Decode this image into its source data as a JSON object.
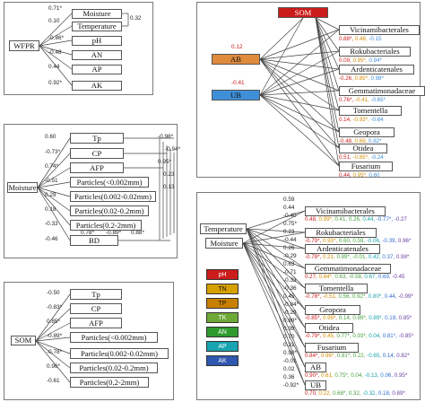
{
  "colors": {
    "som": "#cc1b1b",
    "ab": "#e08a3c",
    "ub": "#3f8fd8",
    "red": "#cc1b1b",
    "orange": "#d38b00",
    "green": "#4aa040",
    "blue": "#2f6fd0",
    "cyan": "#1aa0a8",
    "purple": "#6a3fa0"
  },
  "panel_a": {
    "root": "WFPR",
    "targets": [
      "Moisture",
      "Temperature",
      "pH",
      "AN",
      "AP",
      "AK"
    ],
    "coefs": [
      "0.71*",
      "0.10",
      "-0.86*",
      "-0.48",
      "0.44",
      "0.92*"
    ],
    "cross": "0.32"
  },
  "panel_b": {
    "root": "Moisture",
    "targets": [
      "Tp",
      "CP",
      "AFP",
      "Particles(<0.002mm)",
      "Particles(0.002-0.02mm)",
      "Particles(0.02-0.2mm)",
      "Particles(0.2-2mm)",
      "BD"
    ],
    "coefs": [
      "0.60",
      "-0.73*",
      "0.74*",
      "-0.51",
      "0.29",
      "0.18",
      "-0.33",
      "-0.46"
    ],
    "right": [
      "-0.98*",
      "-0.94*",
      "0.95*",
      "0.23",
      "0.13"
    ],
    "bottom": [
      "0.78*",
      "-0.89*",
      "0.88*"
    ]
  },
  "panel_c": {
    "root": "SOM",
    "targets": [
      "Tp",
      "CP",
      "AFP",
      "Particles(<0.002mm)",
      "Particles(0.002-0.02mm)",
      "Particles(0.02-0.2mm)",
      "Particles(0.2-2mm)"
    ],
    "coefs": [
      "-0.50",
      "-0.83*",
      "0.85*",
      "-0.89*",
      "-0.78*",
      "0.96*",
      "-0.61"
    ]
  },
  "panel_d": {
    "top": "SOM",
    "mid1": "AB",
    "mid2": "UB",
    "ab_coef": "0.12",
    "ub_coef": "-0.41",
    "targets": [
      {
        "name": "Vicinamibacterales",
        "vals": [
          "0.88*",
          "0.46",
          "-0.15"
        ]
      },
      {
        "name": "Rokubacteriales",
        "vals": [
          "0.09",
          "0.95*",
          "0.94*"
        ]
      },
      {
        "name": "Ardenticatenales",
        "vals": [
          "-0.26",
          "0.85*",
          "0.98*"
        ]
      },
      {
        "name": "Gemmatimonadaceae",
        "vals": [
          "0.76*",
          "-0.41",
          "-0.65*"
        ]
      },
      {
        "name": "Tomentella",
        "vals": [
          "0.14",
          "-0.93*",
          "-0.64"
        ]
      },
      {
        "name": "Geopora",
        "vals": [
          "-0.48",
          "0.69",
          "0.82*"
        ]
      },
      {
        "name": "Otidea",
        "vals": [
          "0.51",
          "-0.85*",
          "-0.24"
        ]
      },
      {
        "name": "Fusarium",
        "vals": [
          "0.44",
          "0.95*",
          "0.60"
        ]
      }
    ]
  },
  "panel_e": {
    "left_top": "Temperature",
    "left_bot": "Moisture",
    "legend": [
      "pH",
      "TN",
      "TP",
      "TK",
      "AN",
      "AP",
      "AK"
    ],
    "coefs": [
      "0.59",
      "0.44",
      "-0.40",
      "0.75*",
      "0.23",
      "-0.44",
      "0.26",
      "-0.29",
      "0.63",
      "-0.71",
      "-0.33",
      "-0.36",
      "0.45",
      "-0.84*",
      "-0.29",
      "0.89*",
      "0.39",
      "0.70",
      "0.31",
      "0.90*",
      "-0.01",
      "0.02",
      "0.36",
      "-0.92*"
    ],
    "targets": [
      {
        "name": "Vicinamibacterales",
        "vals": [
          "0.48",
          "0.99*",
          "0.41",
          "0.26",
          "0.44",
          "-0.77*",
          "-0.27"
        ]
      },
      {
        "name": "Rokubacteriales",
        "vals": [
          "-0.79*",
          "0.93*",
          "0.60",
          "0.59",
          "-0.06",
          "-0.39",
          "0.96*"
        ]
      },
      {
        "name": "Ardenticatenales",
        "vals": [
          "-0.78*",
          "0.21",
          "0.89*",
          "-0.01",
          "0.42",
          "0.37",
          "0.98*"
        ]
      },
      {
        "name": "Gemmatimonadaceae",
        "vals": [
          "0.27",
          "0.84*",
          "0.63",
          "-0.58",
          "0.67",
          "0.69",
          "-0.45"
        ]
      },
      {
        "name": "Tomentella",
        "vals": [
          "-0.78*",
          "-0.51",
          "0.56",
          "0.92*",
          "0.80*",
          "0.44",
          "-0.99*"
        ]
      },
      {
        "name": "Geopora",
        "vals": [
          "-0.85*",
          "0.99*",
          "0.14",
          "0.89*",
          "0.89*",
          "0.19",
          "0.85*"
        ]
      },
      {
        "name": "Otidea",
        "vals": [
          "-0.79*",
          "0.45",
          "0.77*",
          "0.93*",
          "0.04",
          "0.81*",
          "-0.85*"
        ]
      },
      {
        "name": "Fusarium",
        "vals": [
          "0.84*",
          "0.96*",
          "0.81*",
          "0.22",
          "-0.65",
          "0.14",
          "0.82*"
        ]
      },
      {
        "name": "AB",
        "vals": [
          "0.90*",
          "0.61",
          "0.75*",
          "0.04",
          "-0.13",
          "0.06",
          "0.95*"
        ]
      },
      {
        "name": "UB",
        "vals": [
          "0.70",
          "0.22",
          "0.68*",
          "0.32",
          "-0.32",
          "0.18",
          "0.89*"
        ]
      }
    ]
  }
}
